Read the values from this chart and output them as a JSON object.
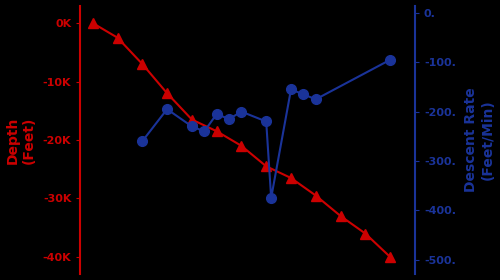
{
  "background_color": "#000000",
  "depth_color": "#cc0000",
  "rate_color": "#1a3399",
  "left_ylabel": "Depth\n(Feet)",
  "right_ylabel": "Descent Rate\n(Feet/Min)",
  "left_ylim": [
    -43000,
    3000
  ],
  "right_ylim": [
    -530,
    15
  ],
  "left_yticks": [
    0,
    -10000,
    -20000,
    -30000,
    -40000
  ],
  "left_yticklabels": [
    "0K",
    "-10K",
    "-20K",
    "-30K",
    "-40K"
  ],
  "right_yticks": [
    0,
    -100,
    -200,
    -300,
    -400,
    -500
  ],
  "right_yticklabels": [
    "0.",
    "-100.",
    "-200.",
    "-300.",
    "-400.",
    "-500."
  ],
  "depth_x": [
    0,
    1,
    2,
    3,
    4,
    5,
    6,
    7,
    8,
    9,
    10,
    11,
    12
  ],
  "depth_y": [
    0,
    -2500,
    -7000,
    -12000,
    -16500,
    -18500,
    -21000,
    -24500,
    -26500,
    -29500,
    -33000,
    -36000,
    -40000
  ],
  "rate_x": [
    2,
    3,
    4,
    4.5,
    5,
    5.5,
    6,
    7,
    7.2,
    8,
    8.5,
    9,
    12
  ],
  "rate_y": [
    -260,
    -195,
    -230,
    -240,
    -205,
    -215,
    -200,
    -220,
    -375,
    -155,
    -165,
    -175,
    -95
  ],
  "xlim": [
    -0.5,
    13
  ],
  "figsize": [
    5.0,
    2.8
  ],
  "dpi": 100
}
